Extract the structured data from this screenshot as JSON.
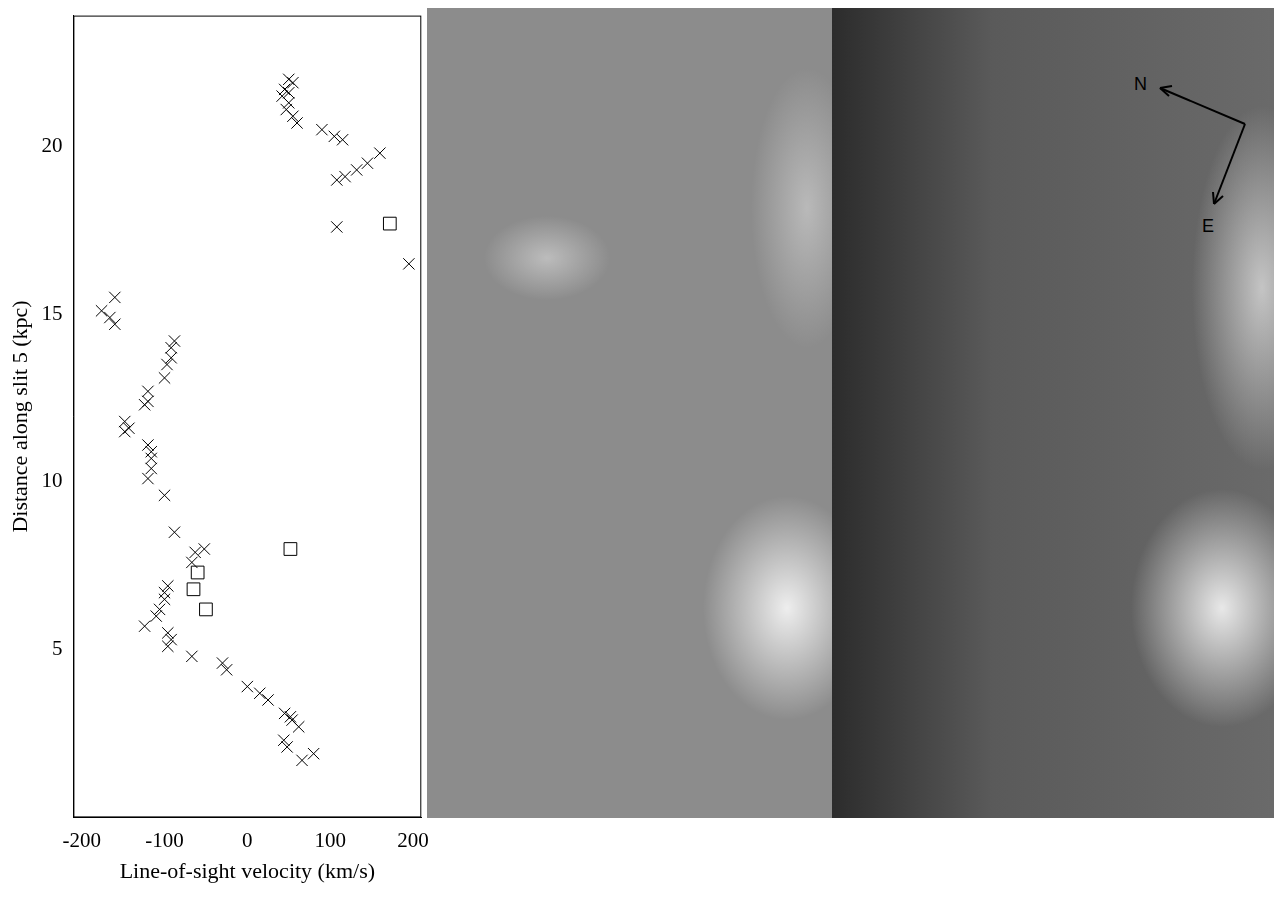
{
  "chart_data": {
    "type": "scatter",
    "x_label": "Line-of-sight velocity (km/s)",
    "y_label": "Distance along slit 5 (kpc)",
    "xlim": [
      -210,
      210
    ],
    "xticks": [
      -200,
      -100,
      0,
      100,
      200
    ],
    "ylim": [
      0,
      23.9
    ],
    "yticks": [
      5,
      10,
      15,
      20
    ],
    "grid": false,
    "series": [
      {
        "marker": "x",
        "color": "#000000",
        "x": [
          50,
          55,
          45,
          50,
          42,
          50,
          47,
          55,
          60,
          90,
          105,
          115,
          160,
          145,
          132,
          118,
          108,
          108,
          195,
          -160,
          -176,
          -166,
          -160,
          -88,
          -92,
          -92,
          -97,
          -100,
          -120,
          -120,
          -124,
          -148,
          -143,
          -148,
          -120,
          -116,
          -116,
          -116,
          -120,
          -100,
          -88,
          -63,
          -52,
          -67,
          -96,
          -100,
          -100,
          -106,
          -110,
          -124,
          -96,
          -92,
          -96,
          -67,
          -30,
          -25,
          0,
          15,
          25,
          45,
          52,
          54,
          62,
          44,
          48,
          80,
          66
        ],
        "y": [
          22.0,
          21.9,
          21.7,
          21.6,
          21.5,
          21.3,
          21.1,
          20.9,
          20.7,
          20.5,
          20.3,
          20.2,
          19.8,
          19.5,
          19.3,
          19.1,
          19.0,
          17.6,
          16.5,
          15.5,
          15.1,
          14.9,
          14.7,
          14.2,
          14.0,
          13.7,
          13.5,
          13.1,
          12.7,
          12.4,
          12.3,
          11.8,
          11.6,
          11.5,
          11.1,
          10.9,
          10.7,
          10.4,
          10.1,
          9.6,
          8.5,
          7.9,
          8.0,
          7.6,
          6.9,
          6.7,
          6.5,
          6.2,
          6.0,
          5.7,
          5.5,
          5.3,
          5.1,
          4.8,
          4.6,
          4.4,
          3.9,
          3.7,
          3.5,
          3.1,
          3.0,
          2.9,
          2.7,
          2.3,
          2.1,
          1.9,
          1.7
        ]
      },
      {
        "marker": "square",
        "color": "#000000",
        "x": [
          172,
          52,
          -60,
          -65,
          -50
        ],
        "y": [
          17.7,
          8.0,
          7.3,
          6.8,
          6.2
        ]
      }
    ]
  },
  "compass": {
    "north": "N",
    "east": "E"
  }
}
